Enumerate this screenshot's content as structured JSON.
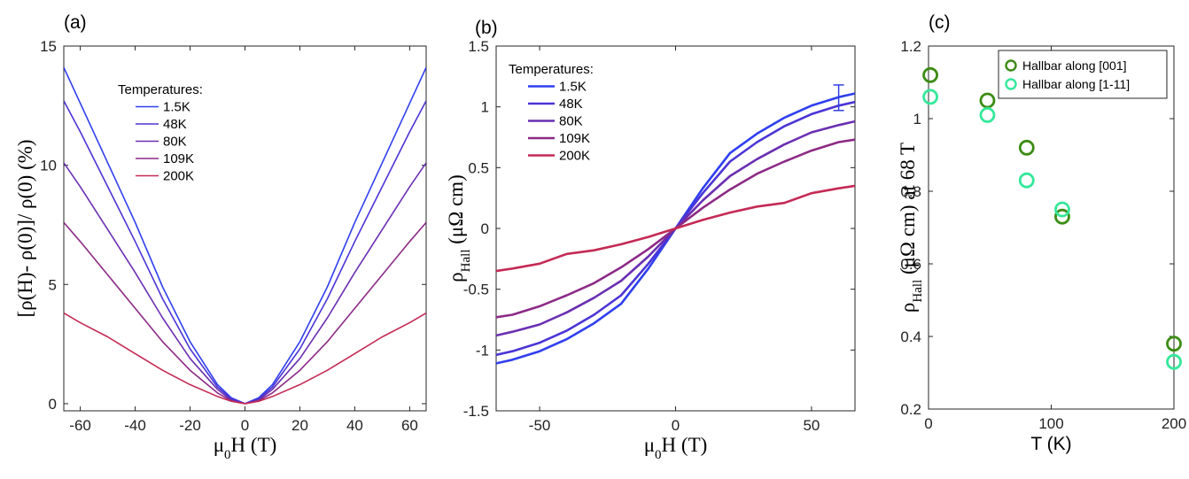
{
  "panels": {
    "a": {
      "label": "(a)"
    },
    "b": {
      "label": "(b)"
    },
    "c": {
      "label": "(c)"
    }
  },
  "chart_data": [
    {
      "id": "a",
      "type": "line",
      "title": "",
      "xlabel": "μ0H (T)",
      "ylabel": "[ρ(H)- ρ(0)]/ ρ(0) (%)",
      "xlim": [
        -66,
        66
      ],
      "ylim": [
        -0.3,
        15
      ],
      "xticks": [
        -60,
        -40,
        -20,
        0,
        20,
        40,
        60
      ],
      "yticks": [
        0,
        5,
        10,
        15
      ],
      "legend_title": "Temperatures:",
      "x": [
        -66,
        -60,
        -50,
        -40,
        -30,
        -20,
        -10,
        -5,
        0,
        5,
        10,
        20,
        30,
        40,
        50,
        60,
        66
      ],
      "series": [
        {
          "name": "1.5K",
          "color": "#2f3ff0",
          "values": [
            14.1,
            12.6,
            10.1,
            7.6,
            4.9,
            2.6,
            0.8,
            0.25,
            0.0,
            0.25,
            0.8,
            2.6,
            4.9,
            7.6,
            10.1,
            12.6,
            14.1
          ]
        },
        {
          "name": "48K",
          "color": "#4b35d6",
          "values": [
            12.7,
            11.4,
            9.1,
            6.8,
            4.4,
            2.3,
            0.7,
            0.2,
            0.0,
            0.2,
            0.7,
            2.3,
            4.4,
            6.8,
            9.1,
            11.4,
            12.7
          ]
        },
        {
          "name": "80K",
          "color": "#6a2fb2",
          "values": [
            10.1,
            9.1,
            7.3,
            5.5,
            3.6,
            1.9,
            0.6,
            0.15,
            0.0,
            0.15,
            0.6,
            1.9,
            3.6,
            5.5,
            7.3,
            9.1,
            10.1
          ]
        },
        {
          "name": "109K",
          "color": "#8c2a86",
          "values": [
            7.6,
            6.8,
            5.4,
            4.0,
            2.6,
            1.4,
            0.45,
            0.12,
            0.0,
            0.12,
            0.45,
            1.4,
            2.6,
            4.0,
            5.4,
            6.8,
            7.6
          ]
        },
        {
          "name": "200K",
          "color": "#c42a55",
          "values": [
            3.8,
            3.4,
            2.8,
            2.1,
            1.4,
            0.8,
            0.3,
            0.1,
            0.0,
            0.1,
            0.3,
            0.8,
            1.4,
            2.1,
            2.8,
            3.4,
            3.8
          ]
        }
      ]
    },
    {
      "id": "b",
      "type": "line",
      "title": "",
      "xlabel": "μ0H (T)",
      "ylabel": "ρHall (μΩ cm)",
      "xlim": [
        -66,
        66
      ],
      "ylim": [
        -1.5,
        1.5
      ],
      "xticks": [
        -50,
        0,
        50
      ],
      "yticks": [
        -1.5,
        -1,
        -0.5,
        0,
        0.5,
        1,
        1.5
      ],
      "legend_title": "Temperatures:",
      "errorbar": {
        "x": 60,
        "ylow": 0.97,
        "yhigh": 1.18
      },
      "x": [
        -66,
        -60,
        -50,
        -40,
        -30,
        -20,
        -10,
        0,
        10,
        20,
        30,
        40,
        50,
        60,
        66
      ],
      "series": [
        {
          "name": "1.5K",
          "color": "#2f3ff0",
          "values": [
            -1.11,
            -1.08,
            -1.01,
            -0.91,
            -0.78,
            -0.62,
            -0.33,
            0.0,
            0.33,
            0.62,
            0.78,
            0.91,
            1.01,
            1.08,
            1.11
          ]
        },
        {
          "name": "48K",
          "color": "#4b35d6",
          "values": [
            -1.04,
            -1.01,
            -0.94,
            -0.84,
            -0.71,
            -0.55,
            -0.29,
            0.0,
            0.29,
            0.55,
            0.71,
            0.84,
            0.94,
            1.01,
            1.04
          ]
        },
        {
          "name": "80K",
          "color": "#6a2fb2",
          "values": [
            -0.88,
            -0.85,
            -0.79,
            -0.69,
            -0.57,
            -0.43,
            -0.23,
            0.0,
            0.23,
            0.43,
            0.57,
            0.69,
            0.79,
            0.85,
            0.88
          ]
        },
        {
          "name": "109K",
          "color": "#8c2a86",
          "values": [
            -0.73,
            -0.71,
            -0.64,
            -0.55,
            -0.45,
            -0.32,
            -0.17,
            0.0,
            0.17,
            0.32,
            0.45,
            0.55,
            0.64,
            0.71,
            0.73
          ]
        },
        {
          "name": "200K",
          "color": "#c42a55",
          "values": [
            -0.35,
            -0.33,
            -0.29,
            -0.21,
            -0.18,
            -0.13,
            -0.07,
            0.0,
            0.07,
            0.13,
            0.18,
            0.21,
            0.29,
            0.33,
            0.35
          ]
        }
      ]
    },
    {
      "id": "c",
      "type": "scatter",
      "title": "",
      "xlabel": "T (K)",
      "ylabel": "ρHall (μΩ cm) at 68 T",
      "xlim": [
        0,
        200
      ],
      "ylim": [
        0.2,
        1.2
      ],
      "xticks": [
        0,
        100,
        200
      ],
      "yticks": [
        0.2,
        0.4,
        0.6,
        0.8,
        1,
        1.2
      ],
      "legend_position": "top-right",
      "series": [
        {
          "name": "Hallbar along [001]",
          "color": "#3c8c14",
          "x": [
            1.5,
            48,
            80,
            109,
            200
          ],
          "values": [
            1.12,
            1.05,
            0.92,
            0.73,
            0.38
          ]
        },
        {
          "name": "Hallbar along [1-11]",
          "color": "#34e89a",
          "x": [
            1.5,
            48,
            80,
            109,
            200
          ],
          "values": [
            1.06,
            1.01,
            0.83,
            0.75,
            0.33
          ]
        }
      ]
    }
  ]
}
